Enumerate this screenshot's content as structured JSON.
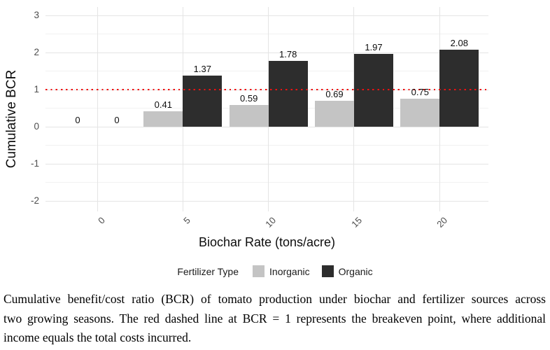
{
  "chart_data": {
    "type": "bar",
    "title": "",
    "xlabel": "Biochar Rate (tons/acre)",
    "ylabel": "Cumulative BCR",
    "categories": [
      "0",
      "5",
      "10",
      "15",
      "20"
    ],
    "series": [
      {
        "name": "Inorganic",
        "color": "#c4c4c4",
        "values": [
          0,
          0.41,
          0.59,
          0.69,
          0.75
        ],
        "labels": [
          "0",
          "0.41",
          "0.59",
          "0.69",
          "0.75"
        ]
      },
      {
        "name": "Organic",
        "color": "#2d2d2d",
        "values": [
          0,
          1.37,
          1.78,
          1.97,
          2.08
        ],
        "labels": [
          "0",
          "1.37",
          "1.78",
          "1.97",
          "2.08"
        ]
      }
    ],
    "yticks": [
      -2,
      -1,
      0,
      1,
      2,
      3
    ],
    "ylim": [
      -2.3,
      3.25
    ],
    "grid": {
      "on": true,
      "major_color": "#e4e4e4",
      "minor_color": "#f1f1f1"
    },
    "reference_line": {
      "value": 1,
      "style": "dotted",
      "color": "#ee1111"
    },
    "legend": {
      "title": "Fertilizer Type",
      "position": "bottom"
    }
  },
  "caption": {
    "lines": [
      "Cumulative benefit/cost ratio (BCR) of tomato production under biochar and fertilizer sources across",
      "two growing seasons. The red dashed line at BCR = 1 represents the breakeven point, where additional",
      "income equals the total costs incurred."
    ]
  }
}
